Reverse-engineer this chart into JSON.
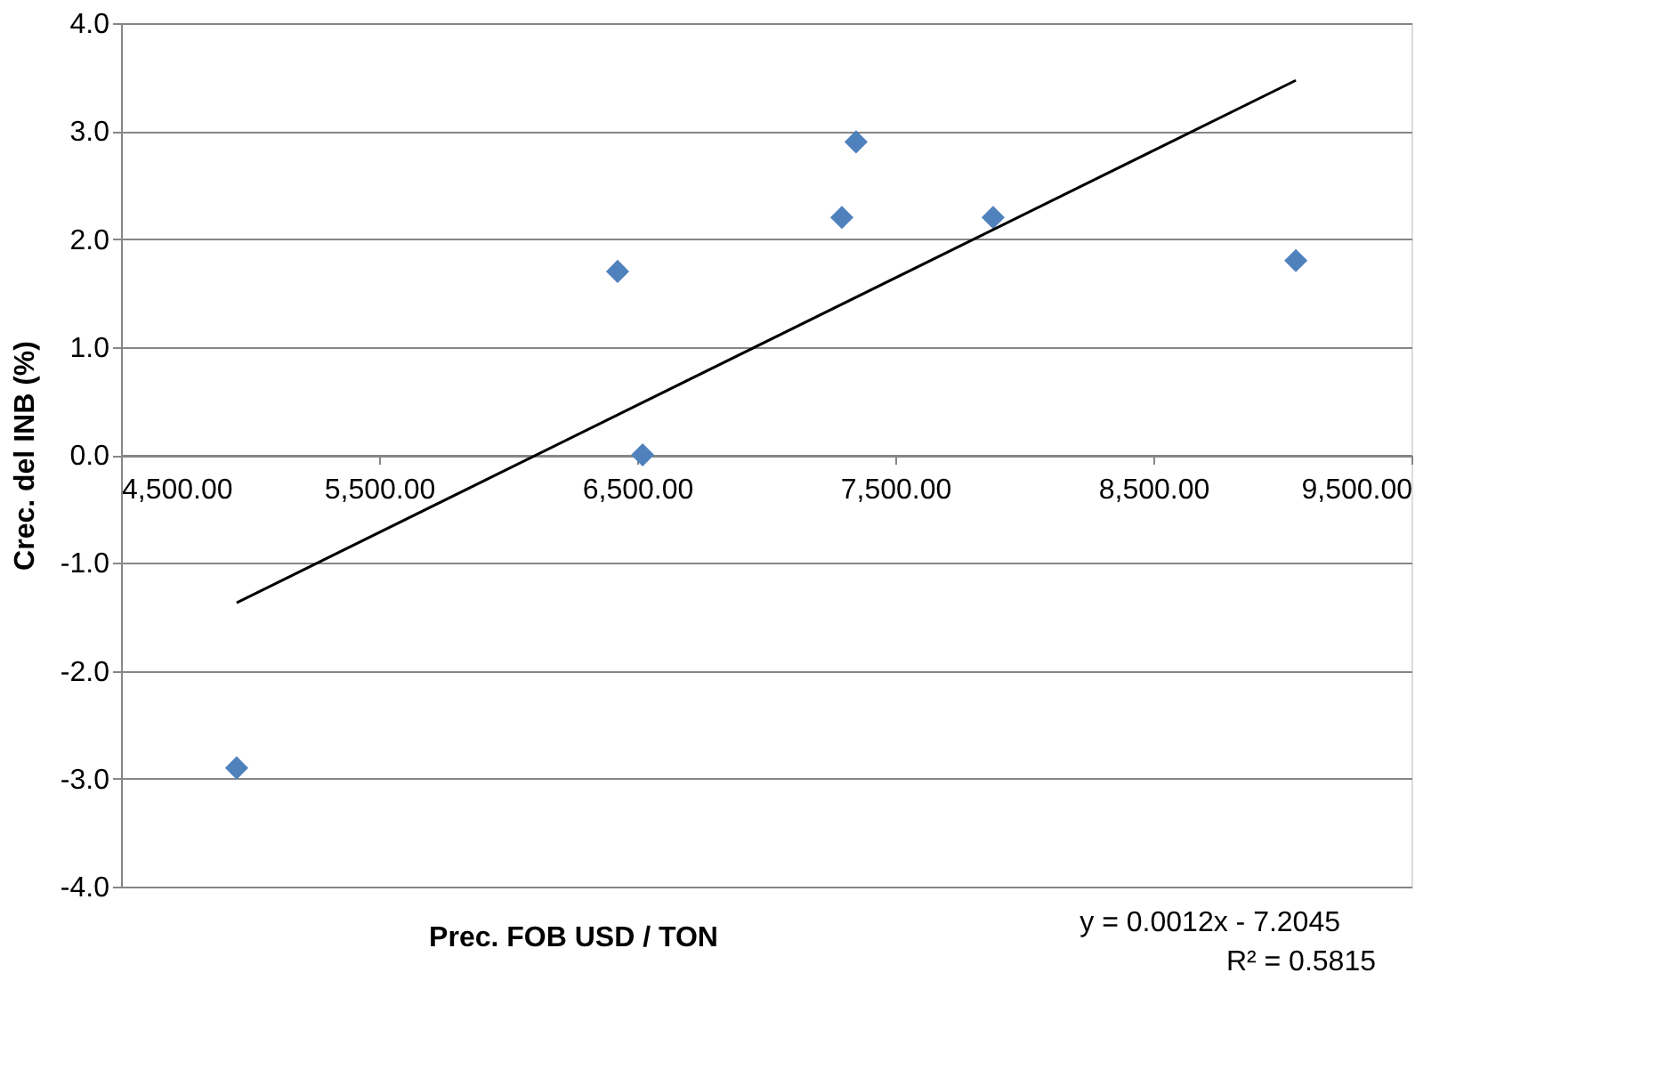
{
  "chart_data": {
    "type": "scatter",
    "xlabel": "Prec. FOB USD / TON",
    "ylabel": "Crec. del INB (%)",
    "xlim": [
      4500,
      9500
    ],
    "xticks": [
      {
        "value": 4500,
        "label": "4,500.00"
      },
      {
        "value": 5500,
        "label": "5,500.00"
      },
      {
        "value": 6500,
        "label": "6,500.00"
      },
      {
        "value": 7500,
        "label": "7,500.00"
      },
      {
        "value": 8500,
        "label": "8,500.00"
      },
      {
        "value": 9500,
        "label": "9,500.00"
      }
    ],
    "ylim": [
      -4,
      4
    ],
    "yticks": [
      {
        "value": -4,
        "label": "-4.0"
      },
      {
        "value": -3,
        "label": "-3.0"
      },
      {
        "value": -2,
        "label": "-2.0"
      },
      {
        "value": -1,
        "label": "-1.0"
      },
      {
        "value": 0,
        "label": "0.0"
      },
      {
        "value": 1,
        "label": "1.0"
      },
      {
        "value": 2,
        "label": "2.0"
      },
      {
        "value": 3,
        "label": "3.0"
      },
      {
        "value": 4,
        "label": "4.0"
      }
    ],
    "grid": "y",
    "series": [
      {
        "marker": "diamond",
        "color": "#4f81bd",
        "x": [
          4948,
          6424,
          6521,
          7293,
          7348,
          7879,
          9052
        ],
        "values": [
          -2.9,
          1.7,
          0.0,
          2.2,
          2.9,
          2.2,
          1.8
        ]
      },
      {
        "type": "line",
        "marker": "none",
        "line_style": "solid",
        "color": "#000000",
        "x": [
          4948,
          9052
        ],
        "values": [
          -1.37,
          3.47
        ]
      }
    ],
    "annotations": [
      "y = 0.0012x - 7.2045",
      "R² = 0.5815"
    ]
  }
}
